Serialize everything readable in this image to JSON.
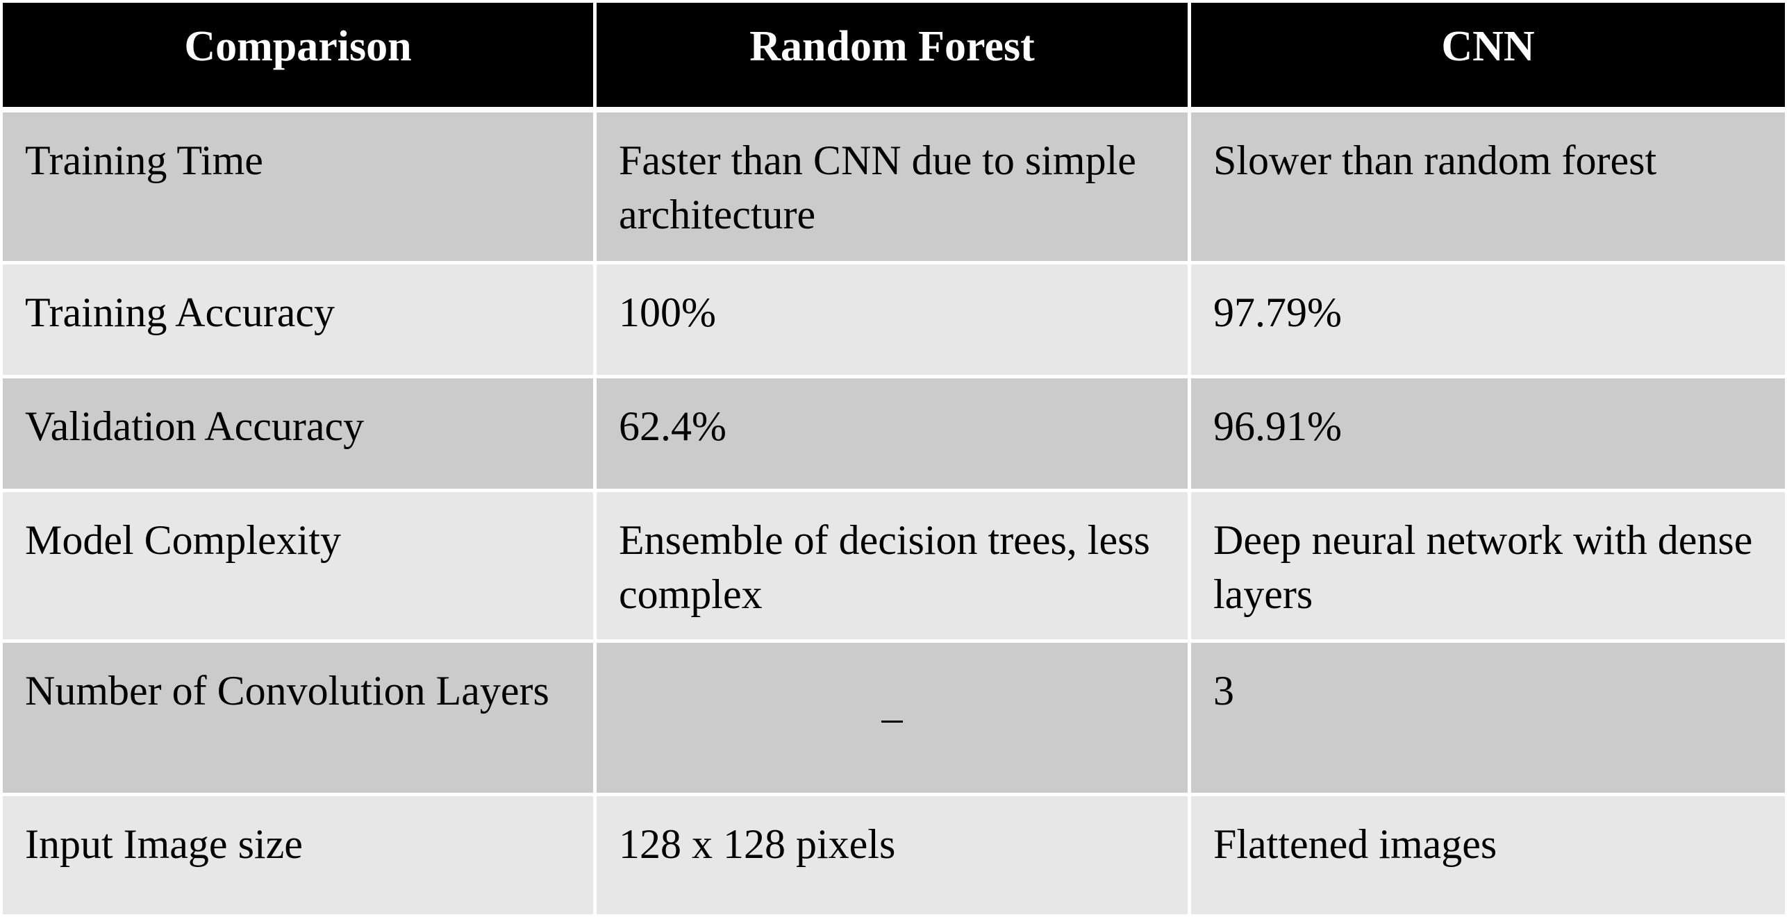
{
  "table": {
    "headers": [
      "Comparison",
      "Random Forest",
      "CNN"
    ],
    "rows": [
      [
        "Training Time",
        "Faster than CNN due to simple architecture",
        "Slower than random forest"
      ],
      [
        "Training Accuracy",
        "100%",
        "97.79%"
      ],
      [
        "Validation Accuracy",
        "62.4%",
        "96.91%"
      ],
      [
        "Model Complexity",
        "Ensemble of decision trees, less complex",
        "Deep neural network with dense layers"
      ],
      [
        "Number of Convolution Layers",
        "_",
        "3"
      ],
      [
        "Input Image size",
        "128 x 128 pixels",
        "Flattened images"
      ]
    ]
  },
  "colors": {
    "header_bg": "#000000",
    "header_text": "#ffffff",
    "row_dark": "#cbcbcb",
    "row_light": "#e7e7e7",
    "grid_line": "#ffffff"
  }
}
